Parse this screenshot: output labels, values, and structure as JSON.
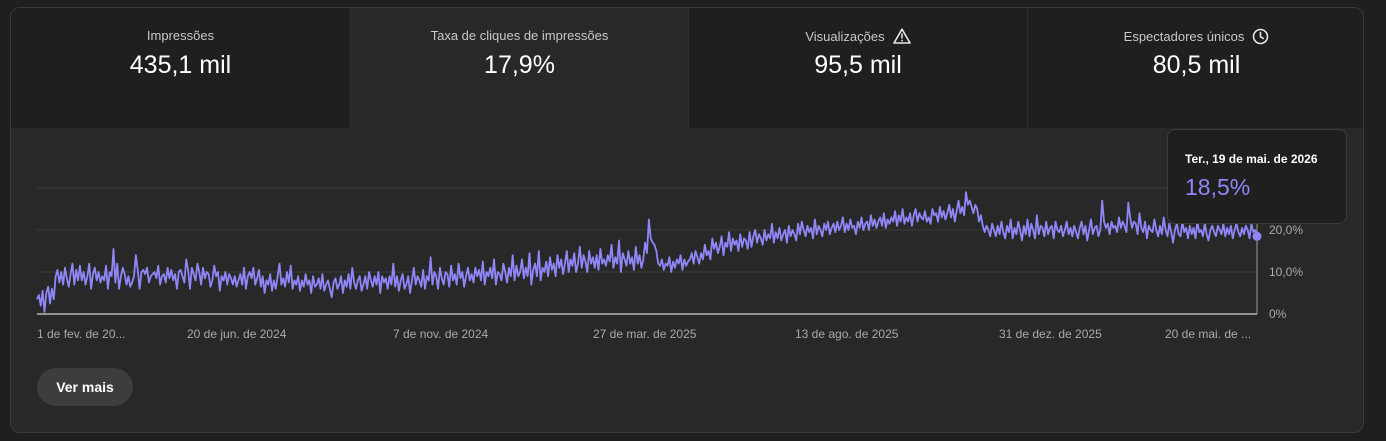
{
  "tabs": [
    {
      "label": "Impressões",
      "value": "435,1 mil",
      "icon": ""
    },
    {
      "label": "Taxa de cliques de impressões",
      "value": "17,9%",
      "icon": ""
    },
    {
      "label": "Visualizações",
      "value": "95,5 mil",
      "icon": "warning-icon"
    },
    {
      "label": "Espectadores únicos",
      "value": "80,5 mil",
      "icon": "clock-icon"
    }
  ],
  "active_tab": 1,
  "tooltip": {
    "date": "Ter., 19 de mai. de 2026",
    "value": "18,5%"
  },
  "button": {
    "label": "Ver mais"
  },
  "colors": {
    "line": "#8f86f8",
    "background": "#282828",
    "tab_inactive": "#1f1f1f"
  },
  "chart_data": {
    "type": "line",
    "x_tick_labels": [
      "1 de fev. de 20...",
      "20 de jun. de 2024",
      "7 de nov. de 2024",
      "27 de mar. de 2025",
      "13 de ago. de 2025",
      "31 de dez. de 2025",
      "20 de mai. de ..."
    ],
    "y_tick_labels": [
      "0%",
      "10,0%",
      "20,0%"
    ],
    "ylim": [
      0,
      30
    ],
    "series": [
      {
        "values": [
          3.5,
          4.5,
          2,
          5.5,
          0.5,
          5,
          6.5,
          2.5,
          6,
          3.5,
          9,
          10.5,
          7.5,
          10,
          7,
          11,
          8.5,
          6.5,
          9.5,
          12,
          7,
          10.5,
          8,
          11.5,
          8,
          10,
          7,
          9,
          12,
          6,
          9.5,
          11,
          8,
          10,
          7.5,
          9,
          8,
          11.5,
          6,
          10,
          9,
          15.5,
          7.5,
          12,
          6,
          9,
          11,
          9.5,
          7,
          9,
          6.5,
          7.5,
          9,
          14,
          10.5,
          6,
          10,
          10.5,
          9.5,
          11,
          7.5,
          9,
          9.5,
          10,
          8.5,
          11.5,
          7,
          9,
          9.5,
          7.5,
          11,
          8.5,
          10.5,
          8,
          9.5,
          6,
          10,
          10.5,
          9,
          7.5,
          13,
          10.5,
          6,
          11,
          9.5,
          8,
          12,
          10,
          7,
          11,
          8.5,
          10,
          9.5,
          6.5,
          8,
          11.5,
          9,
          10,
          5.5,
          9,
          8,
          10,
          7,
          9.5,
          8.5,
          7,
          9,
          6.5,
          8,
          9.5,
          7,
          11,
          6,
          9,
          10,
          8.5,
          11,
          7,
          8.5,
          10.5,
          6.5,
          9,
          5,
          8,
          7,
          9.5,
          5.5,
          8,
          6,
          9,
          12,
          7,
          8.5,
          6.5,
          10,
          7.5,
          11.5,
          6,
          8,
          7,
          9,
          5.5,
          8,
          6.5,
          9.5,
          7,
          8,
          5,
          9,
          6.5,
          7,
          8.5,
          6,
          9.5,
          5.5,
          7,
          8,
          6,
          4,
          7.5,
          8.5,
          6,
          7,
          9,
          5,
          8,
          6.5,
          9.5,
          6,
          11,
          7.5,
          6,
          8,
          9,
          5.5,
          7,
          9,
          6,
          10,
          8,
          6.5,
          9,
          7,
          10,
          5,
          9,
          7.5,
          8.5,
          6,
          9,
          7,
          12,
          6.5,
          9,
          5.5,
          8,
          9.5,
          6,
          7,
          9,
          5,
          8,
          11,
          7,
          9,
          8,
          6.5,
          10.5,
          6,
          9,
          8,
          13.5,
          7,
          10,
          9,
          6,
          11,
          8.5,
          7,
          10,
          9.5,
          6.5,
          11.5,
          8,
          9.5,
          7,
          12,
          8.5,
          10,
          6.5,
          9,
          11,
          8,
          9.5,
          7.5,
          11,
          9,
          10.5,
          8,
          12.5,
          7,
          10,
          9,
          11,
          8.5,
          13,
          7,
          10,
          9.5,
          8,
          12,
          10,
          7.5,
          11,
          9,
          14,
          8,
          11.5,
          9,
          10,
          13,
          8.5,
          11,
          9,
          14.5,
          7,
          10.5,
          12,
          9,
          15,
          8,
          11,
          10,
          12.5,
          9,
          13.5,
          10.5,
          12,
          9,
          14,
          11,
          13,
          9.5,
          12,
          15,
          10,
          13,
          11.5,
          14.5,
          10,
          12,
          16,
          11,
          14,
          12.5,
          10,
          15,
          12,
          13.5,
          11,
          14,
          10.5,
          15.5,
          12,
          13,
          11.5,
          14,
          12.5,
          16.5,
          11,
          13.5,
          12,
          17.5,
          10,
          14.5,
          13,
          11.5,
          15,
          12,
          13.5,
          10.5,
          16,
          12,
          14,
          11,
          13,
          17,
          14.5,
          22.5,
          18,
          17,
          16.5,
          15,
          12,
          11.5,
          13,
          10.5,
          12,
          11.5,
          13.5,
          10,
          12.5,
          11,
          13,
          12,
          14,
          10.5,
          13,
          11.5,
          12.5,
          13,
          14.5,
          12,
          15,
          13.5,
          12,
          14.5,
          13,
          16.5,
          14,
          15,
          13,
          18,
          15.5,
          17,
          14.5,
          16,
          18.5,
          14,
          17,
          16,
          19.5,
          15,
          18,
          16.5,
          17.5,
          15,
          19,
          16,
          18,
          17.5,
          15.5,
          19.5,
          16,
          18.5,
          20,
          17,
          19,
          18,
          16.5,
          20,
          17.5,
          19,
          18,
          21.5,
          17,
          19.5,
          18,
          20.5,
          17.5,
          19,
          20,
          17,
          21,
          18.5,
          20,
          19,
          17.5,
          21.5,
          19,
          22,
          20,
          18.5,
          21,
          19.5,
          20.5,
          18,
          22.5,
          19,
          21,
          20,
          18.5,
          21.5,
          20,
          22,
          19,
          20.5,
          21.5,
          19.5,
          22,
          20,
          21,
          23,
          19.5,
          21.5,
          20,
          22.5,
          20.5,
          21,
          19,
          22,
          20.5,
          23,
          20,
          21.5,
          22,
          20,
          23.5,
          21,
          22.5,
          20.5,
          22,
          23,
          21,
          24,
          20.5,
          22.5,
          21.5,
          23,
          22,
          24.5,
          21,
          23.5,
          22,
          25,
          21.5,
          23,
          22,
          24,
          21,
          23.5,
          25,
          22,
          24,
          23,
          22.5,
          24.5,
          22,
          23,
          21.5,
          25,
          23.5,
          24,
          22,
          25.5,
          23,
          24.5,
          22.5,
          24,
          26,
          23,
          25,
          22,
          24.5,
          27,
          24,
          25.5,
          23.5,
          29,
          26,
          27,
          25.5,
          24,
          26,
          25,
          22,
          23.5,
          21,
          19.5,
          21,
          20,
          18.5,
          21.5,
          20,
          18.5,
          21,
          19,
          22,
          19.5,
          18,
          21,
          19.5,
          22.5,
          18,
          20.5,
          19,
          22,
          20,
          17.5,
          21,
          19,
          22.5,
          18.5,
          21.5,
          20,
          18,
          23.5,
          19,
          21,
          20.5,
          18.5,
          22,
          19,
          20.5,
          21,
          18,
          22,
          20,
          19.5,
          21,
          18.5,
          20,
          22,
          19,
          20.5,
          18.5,
          21,
          19.5,
          18,
          20.5,
          22,
          19,
          21,
          17.5,
          20,
          22.5,
          19,
          20.5,
          21,
          18.5,
          20,
          27,
          22,
          20.5,
          21.5,
          19,
          22,
          20.5,
          21,
          19.5,
          23,
          20.5,
          22,
          21,
          19.5,
          26.5,
          23,
          20.5,
          22,
          21.5,
          19,
          24,
          20.5,
          19.5,
          22,
          18,
          21,
          20,
          19.5,
          22.5,
          20,
          18.5,
          21,
          19,
          23,
          20,
          18.5,
          21.5,
          19.5,
          17,
          20,
          21.5,
          19,
          18.5,
          22,
          19.5,
          20.5,
          18,
          21,
          19,
          20.5,
          18,
          22,
          19.5,
          20,
          18.5,
          21.5,
          19,
          17.5,
          20,
          21,
          19.5,
          18.5,
          21,
          20,
          19,
          21.5,
          18.5,
          20.5,
          19,
          21,
          18,
          20,
          21.5,
          19.5,
          18.5,
          20.5,
          19,
          21,
          20,
          18,
          21.5,
          19.5,
          20,
          18.5
        ]
      }
    ]
  }
}
